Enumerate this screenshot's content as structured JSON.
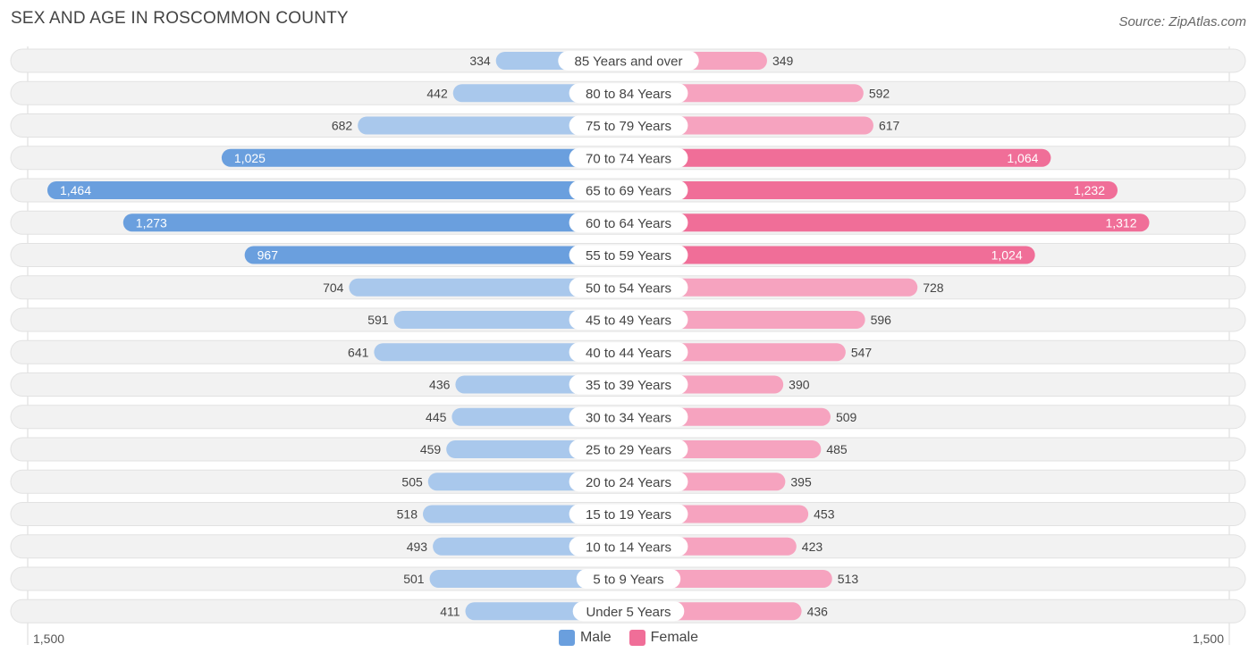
{
  "header": {
    "title": "SEX AND AGE IN ROSCOMMON COUNTY",
    "source": "Source: ZipAtlas.com"
  },
  "colors": {
    "male_light": "#a9c8ec",
    "male_dark": "#6a9fde",
    "female_light": "#f6a3bf",
    "female_dark": "#f06e98",
    "row_bg": "#f2f2f2"
  },
  "legend": {
    "male": "Male",
    "female": "Female"
  },
  "axis": {
    "left_label": "1,500",
    "right_label": "1,500"
  },
  "chart_data": {
    "type": "bar",
    "orientation": "horizontal-diverging",
    "title": "SEX AND AGE IN ROSCOMMON COUNTY",
    "xlim": [
      0,
      1500
    ],
    "categories": [
      "85 Years and over",
      "80 to 84 Years",
      "75 to 79 Years",
      "70 to 74 Years",
      "65 to 69 Years",
      "60 to 64 Years",
      "55 to 59 Years",
      "50 to 54 Years",
      "45 to 49 Years",
      "40 to 44 Years",
      "35 to 39 Years",
      "30 to 34 Years",
      "25 to 29 Years",
      "20 to 24 Years",
      "15 to 19 Years",
      "10 to 14 Years",
      "5 to 9 Years",
      "Under 5 Years"
    ],
    "series": [
      {
        "name": "Male",
        "values": [
          334,
          442,
          682,
          1025,
          1464,
          1273,
          967,
          704,
          591,
          641,
          436,
          445,
          459,
          505,
          518,
          493,
          501,
          411
        ],
        "labels": [
          "334",
          "442",
          "682",
          "1,025",
          "1,464",
          "1,273",
          "967",
          "704",
          "591",
          "641",
          "436",
          "445",
          "459",
          "505",
          "518",
          "493",
          "501",
          "411"
        ]
      },
      {
        "name": "Female",
        "values": [
          349,
          592,
          617,
          1064,
          1232,
          1312,
          1024,
          728,
          596,
          547,
          390,
          509,
          485,
          395,
          453,
          423,
          513,
          436
        ],
        "labels": [
          "349",
          "592",
          "617",
          "1,064",
          "1,232",
          "1,312",
          "1,024",
          "728",
          "596",
          "547",
          "390",
          "509",
          "485",
          "395",
          "453",
          "423",
          "513",
          "436"
        ]
      }
    ]
  }
}
